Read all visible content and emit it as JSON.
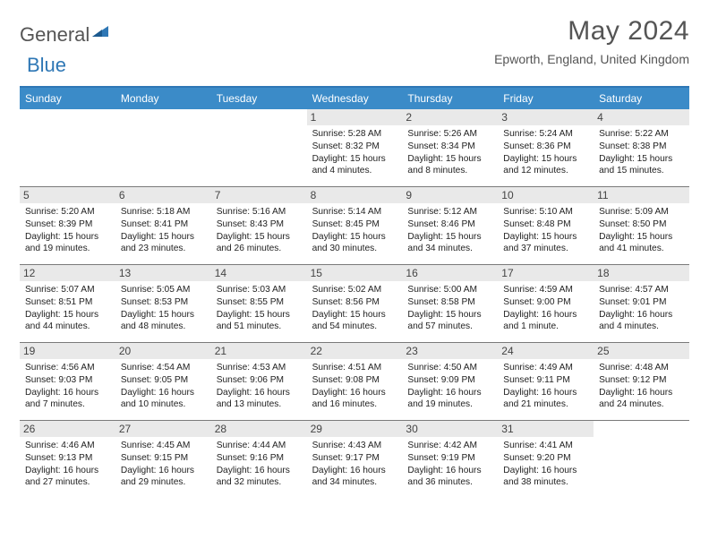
{
  "logo": {
    "text1": "General",
    "text2": "Blue"
  },
  "title": "May 2024",
  "location": "Epworth, England, United Kingdom",
  "colors": {
    "accent": "#3b8bc8",
    "accent_border": "#2e77b5",
    "header_text": "#555555",
    "daynum_bg": "#e9e9e9",
    "row_border": "#7a7a7a"
  },
  "day_names": [
    "Sunday",
    "Monday",
    "Tuesday",
    "Wednesday",
    "Thursday",
    "Friday",
    "Saturday"
  ],
  "weeks": [
    [
      null,
      null,
      null,
      {
        "n": "1",
        "sr": "5:28 AM",
        "ss": "8:32 PM",
        "dl": "15 hours and 4 minutes."
      },
      {
        "n": "2",
        "sr": "5:26 AM",
        "ss": "8:34 PM",
        "dl": "15 hours and 8 minutes."
      },
      {
        "n": "3",
        "sr": "5:24 AM",
        "ss": "8:36 PM",
        "dl": "15 hours and 12 minutes."
      },
      {
        "n": "4",
        "sr": "5:22 AM",
        "ss": "8:38 PM",
        "dl": "15 hours and 15 minutes."
      }
    ],
    [
      {
        "n": "5",
        "sr": "5:20 AM",
        "ss": "8:39 PM",
        "dl": "15 hours and 19 minutes."
      },
      {
        "n": "6",
        "sr": "5:18 AM",
        "ss": "8:41 PM",
        "dl": "15 hours and 23 minutes."
      },
      {
        "n": "7",
        "sr": "5:16 AM",
        "ss": "8:43 PM",
        "dl": "15 hours and 26 minutes."
      },
      {
        "n": "8",
        "sr": "5:14 AM",
        "ss": "8:45 PM",
        "dl": "15 hours and 30 minutes."
      },
      {
        "n": "9",
        "sr": "5:12 AM",
        "ss": "8:46 PM",
        "dl": "15 hours and 34 minutes."
      },
      {
        "n": "10",
        "sr": "5:10 AM",
        "ss": "8:48 PM",
        "dl": "15 hours and 37 minutes."
      },
      {
        "n": "11",
        "sr": "5:09 AM",
        "ss": "8:50 PM",
        "dl": "15 hours and 41 minutes."
      }
    ],
    [
      {
        "n": "12",
        "sr": "5:07 AM",
        "ss": "8:51 PM",
        "dl": "15 hours and 44 minutes."
      },
      {
        "n": "13",
        "sr": "5:05 AM",
        "ss": "8:53 PM",
        "dl": "15 hours and 48 minutes."
      },
      {
        "n": "14",
        "sr": "5:03 AM",
        "ss": "8:55 PM",
        "dl": "15 hours and 51 minutes."
      },
      {
        "n": "15",
        "sr": "5:02 AM",
        "ss": "8:56 PM",
        "dl": "15 hours and 54 minutes."
      },
      {
        "n": "16",
        "sr": "5:00 AM",
        "ss": "8:58 PM",
        "dl": "15 hours and 57 minutes."
      },
      {
        "n": "17",
        "sr": "4:59 AM",
        "ss": "9:00 PM",
        "dl": "16 hours and 1 minute."
      },
      {
        "n": "18",
        "sr": "4:57 AM",
        "ss": "9:01 PM",
        "dl": "16 hours and 4 minutes."
      }
    ],
    [
      {
        "n": "19",
        "sr": "4:56 AM",
        "ss": "9:03 PM",
        "dl": "16 hours and 7 minutes."
      },
      {
        "n": "20",
        "sr": "4:54 AM",
        "ss": "9:05 PM",
        "dl": "16 hours and 10 minutes."
      },
      {
        "n": "21",
        "sr": "4:53 AM",
        "ss": "9:06 PM",
        "dl": "16 hours and 13 minutes."
      },
      {
        "n": "22",
        "sr": "4:51 AM",
        "ss": "9:08 PM",
        "dl": "16 hours and 16 minutes."
      },
      {
        "n": "23",
        "sr": "4:50 AM",
        "ss": "9:09 PM",
        "dl": "16 hours and 19 minutes."
      },
      {
        "n": "24",
        "sr": "4:49 AM",
        "ss": "9:11 PM",
        "dl": "16 hours and 21 minutes."
      },
      {
        "n": "25",
        "sr": "4:48 AM",
        "ss": "9:12 PM",
        "dl": "16 hours and 24 minutes."
      }
    ],
    [
      {
        "n": "26",
        "sr": "4:46 AM",
        "ss": "9:13 PM",
        "dl": "16 hours and 27 minutes."
      },
      {
        "n": "27",
        "sr": "4:45 AM",
        "ss": "9:15 PM",
        "dl": "16 hours and 29 minutes."
      },
      {
        "n": "28",
        "sr": "4:44 AM",
        "ss": "9:16 PM",
        "dl": "16 hours and 32 minutes."
      },
      {
        "n": "29",
        "sr": "4:43 AM",
        "ss": "9:17 PM",
        "dl": "16 hours and 34 minutes."
      },
      {
        "n": "30",
        "sr": "4:42 AM",
        "ss": "9:19 PM",
        "dl": "16 hours and 36 minutes."
      },
      {
        "n": "31",
        "sr": "4:41 AM",
        "ss": "9:20 PM",
        "dl": "16 hours and 38 minutes."
      },
      null
    ]
  ],
  "labels": {
    "sunrise": "Sunrise:",
    "sunset": "Sunset:",
    "daylight": "Daylight:"
  }
}
